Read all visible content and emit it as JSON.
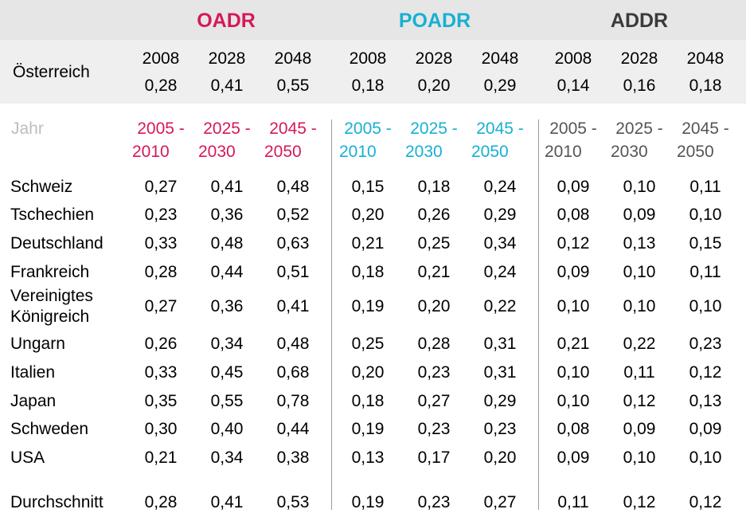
{
  "groups": [
    {
      "label": "OADR",
      "color": "#d6185a"
    },
    {
      "label": "POADR",
      "color": "#17b0d3"
    },
    {
      "label": "ADDR",
      "color": "#3a3a3a"
    }
  ],
  "austria": {
    "label": "Österreich",
    "years": [
      "2008",
      "2028",
      "2048",
      "2008",
      "2028",
      "2048",
      "2008",
      "2028",
      "2048"
    ],
    "values": [
      "0,28",
      "0,41",
      "0,55",
      "0,18",
      "0,20",
      "0,29",
      "0,14",
      "0,16",
      "0,18"
    ]
  },
  "period_header": {
    "label": "Jahr",
    "label_color": "#bdbdbd",
    "periods": [
      {
        "start": "2005 -",
        "end": "2010",
        "color": "#d6185a"
      },
      {
        "start": "2025 -",
        "end": "2030",
        "color": "#d6185a"
      },
      {
        "start": "2045 -",
        "end": "2050",
        "color": "#d6185a"
      },
      {
        "start": "2005 -",
        "end": "2010",
        "color": "#17b0d3"
      },
      {
        "start": "2025 -",
        "end": "2030",
        "color": "#17b0d3"
      },
      {
        "start": "2045 -",
        "end": "2050",
        "color": "#17b0d3"
      },
      {
        "start": "2005 -",
        "end": "2010",
        "color": "#555555"
      },
      {
        "start": "2025 -",
        "end": "2030",
        "color": "#555555"
      },
      {
        "start": "2045 -",
        "end": "2050",
        "color": "#555555"
      }
    ]
  },
  "rows": [
    {
      "country": [
        "Schweiz"
      ],
      "values": [
        "0,27",
        "0,41",
        "0,48",
        "0,15",
        "0,18",
        "0,24",
        "0,09",
        "0,10",
        "0,11"
      ]
    },
    {
      "country": [
        "Tschechien"
      ],
      "values": [
        "0,23",
        "0,36",
        "0,52",
        "0,20",
        "0,26",
        "0,29",
        "0,08",
        "0,09",
        "0,10"
      ]
    },
    {
      "country": [
        "Deutschland"
      ],
      "values": [
        "0,33",
        "0,48",
        "0,63",
        "0,21",
        "0,25",
        "0,34",
        "0,12",
        "0,13",
        "0,15"
      ]
    },
    {
      "country": [
        "Frankreich"
      ],
      "values": [
        "0,28",
        "0,44",
        "0,51",
        "0,18",
        "0,21",
        "0,24",
        "0,09",
        "0,10",
        "0,11"
      ]
    },
    {
      "country": [
        "Vereinigtes",
        "Königreich"
      ],
      "values": [
        "0,27",
        "0,36",
        "0,41",
        "0,19",
        "0,20",
        "0,22",
        "0,10",
        "0,10",
        "0,10"
      ]
    },
    {
      "country": [
        "Ungarn"
      ],
      "values": [
        "0,26",
        "0,34",
        "0,48",
        "0,25",
        "0,28",
        "0,31",
        "0,21",
        "0,22",
        "0,23"
      ]
    },
    {
      "country": [
        "Italien"
      ],
      "values": [
        "0,33",
        "0,45",
        "0,68",
        "0,20",
        "0,23",
        "0,31",
        "0,10",
        "0,11",
        "0,12"
      ]
    },
    {
      "country": [
        "Japan"
      ],
      "values": [
        "0,35",
        "0,55",
        "0,78",
        "0,18",
        "0,27",
        "0,29",
        "0,10",
        "0,12",
        "0,13"
      ]
    },
    {
      "country": [
        "Schweden"
      ],
      "values": [
        "0,30",
        "0,40",
        "0,44",
        "0,19",
        "0,23",
        "0,23",
        "0,08",
        "0,09",
        "0,09"
      ]
    },
    {
      "country": [
        "USA"
      ],
      "values": [
        "0,21",
        "0,34",
        "0,38",
        "0,13",
        "0,17",
        "0,20",
        "0,09",
        "0,10",
        "0,10"
      ]
    },
    {
      "country": [
        "Durchschnitt"
      ],
      "values": [
        "0,28",
        "0,41",
        "0,53",
        "0,19",
        "0,23",
        "0,27",
        "0,11",
        "0,12",
        "0,12"
      ]
    }
  ]
}
